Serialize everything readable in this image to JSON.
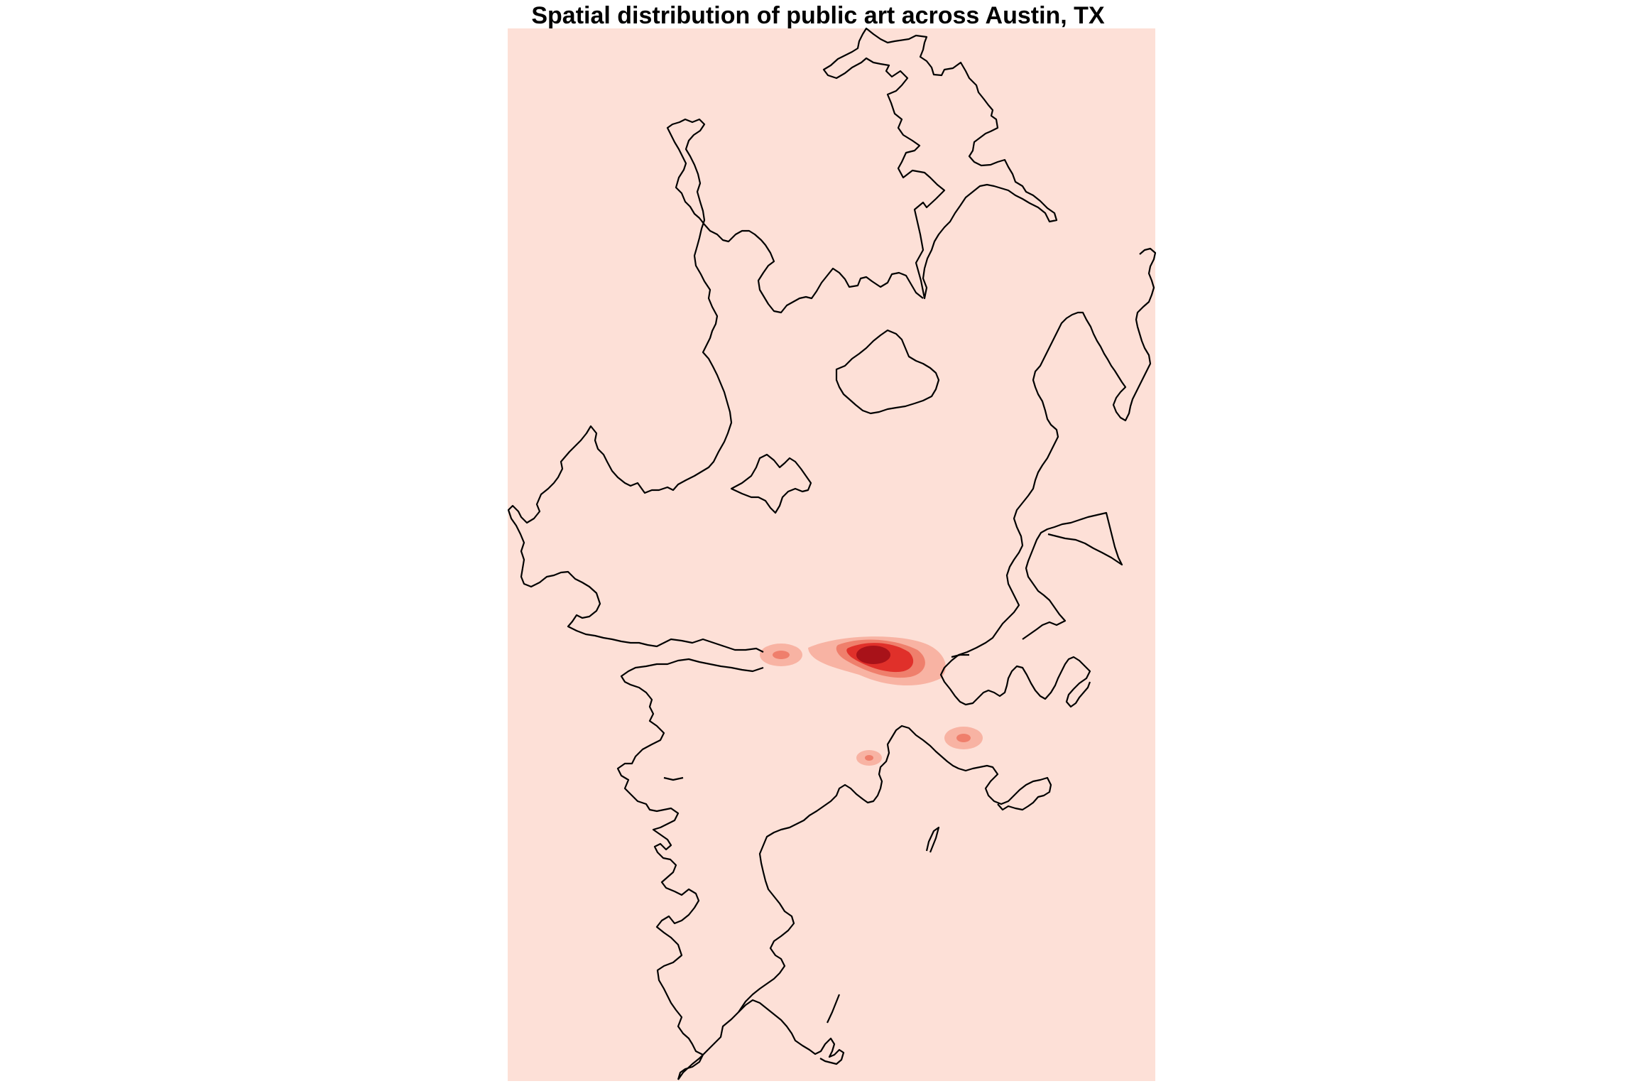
{
  "title": "Spatial distribution of public art across Austin, TX",
  "map": {
    "type": "kernel-density heatmap",
    "colors": {
      "background": "#fde0d7",
      "density_low": "#f8b3a3",
      "density_mid": "#ef7f6c",
      "density_high": "#e0302a",
      "density_peak": "#a81219",
      "boundary": "#000000"
    },
    "density_hotspots": [
      {
        "name": "downtown-core",
        "level": "peak"
      },
      {
        "name": "west-downtown",
        "level": "low"
      },
      {
        "name": "southeast",
        "level": "low"
      },
      {
        "name": "south-central",
        "level": "low"
      }
    ]
  }
}
